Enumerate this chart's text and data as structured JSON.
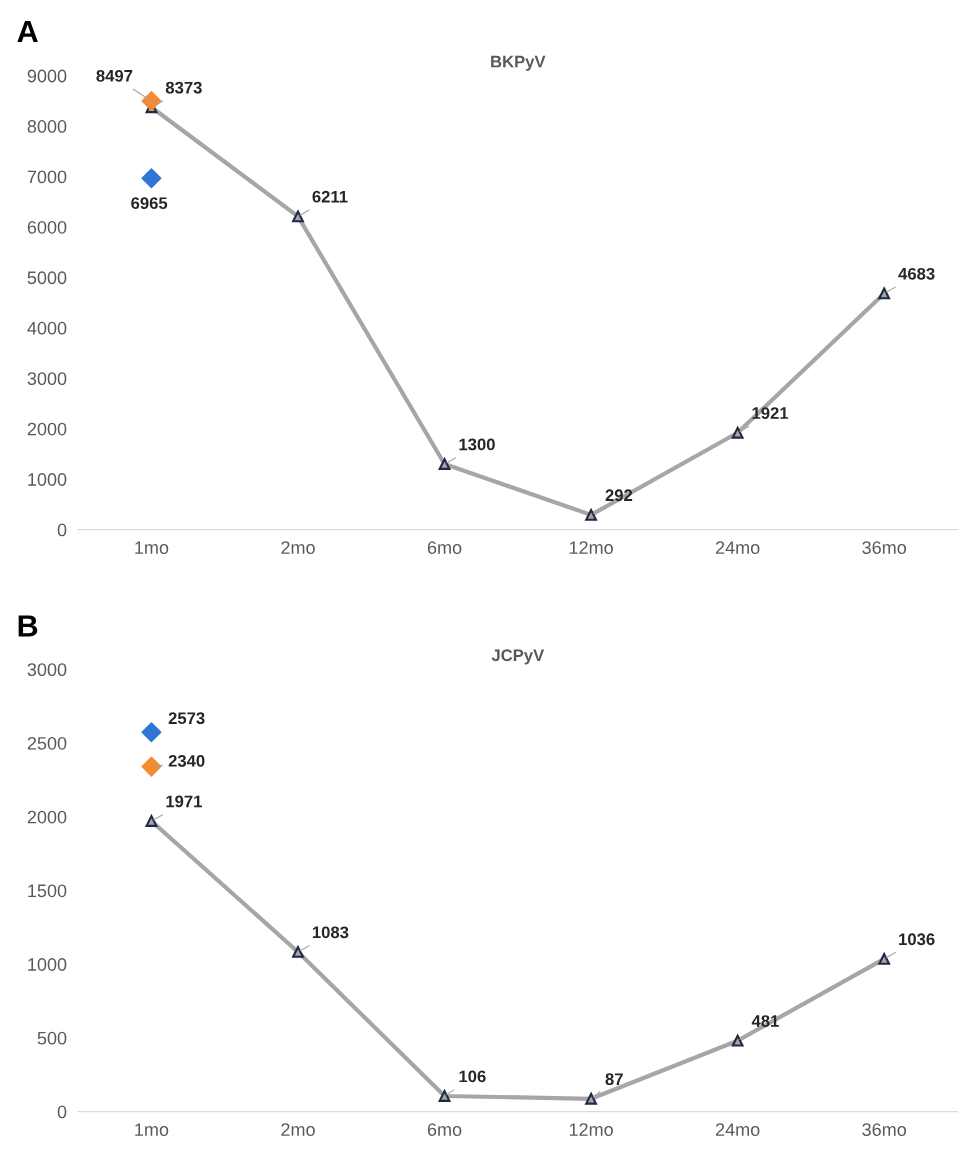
{
  "chart_data": [
    {
      "type": "line",
      "title": "BKPyV",
      "annotations": [
        "A"
      ],
      "categories": [
        "1mo",
        "2mo",
        "6mo",
        "12mo",
        "24mo",
        "36mo"
      ],
      "ylim": [
        0,
        9000
      ],
      "yticks": [
        0,
        1000,
        2000,
        3000,
        4000,
        5000,
        6000,
        7000,
        8000,
        9000
      ],
      "grid": false,
      "legend": false,
      "data_labels": true,
      "series": [
        {
          "color": "#a6a6a6",
          "values": [
            8373,
            6211,
            1300,
            292,
            1921,
            4683
          ],
          "marker": "triangle"
        },
        {
          "type": "scatter",
          "color": "#2e75d6",
          "values": [
            6965,
            null,
            null,
            null,
            null,
            null
          ],
          "marker": "diamond"
        },
        {
          "type": "scatter",
          "color": "#f58a32",
          "values": [
            8497,
            null,
            null,
            null,
            null,
            null
          ],
          "marker": "diamond"
        }
      ]
    },
    {
      "type": "line",
      "title": "JCPyV",
      "annotations": [
        "B"
      ],
      "categories": [
        "1mo",
        "2mo",
        "6mo",
        "12mo",
        "24mo",
        "36mo"
      ],
      "ylim": [
        0,
        3000
      ],
      "yticks": [
        0,
        500,
        1000,
        1500,
        2000,
        2500,
        3000
      ],
      "grid": false,
      "legend": false,
      "data_labels": true,
      "series": [
        {
          "color": "#a6a6a6",
          "values": [
            1971,
            1083,
            106,
            87,
            481,
            1036
          ],
          "marker": "triangle"
        },
        {
          "type": "scatter",
          "color": "#2e75d6",
          "values": [
            2573,
            null,
            null,
            null,
            null,
            null
          ],
          "marker": "diamond"
        },
        {
          "type": "scatter",
          "color": "#f58a32",
          "values": [
            2340,
            null,
            null,
            null,
            null,
            null
          ],
          "marker": "diamond"
        }
      ]
    }
  ]
}
